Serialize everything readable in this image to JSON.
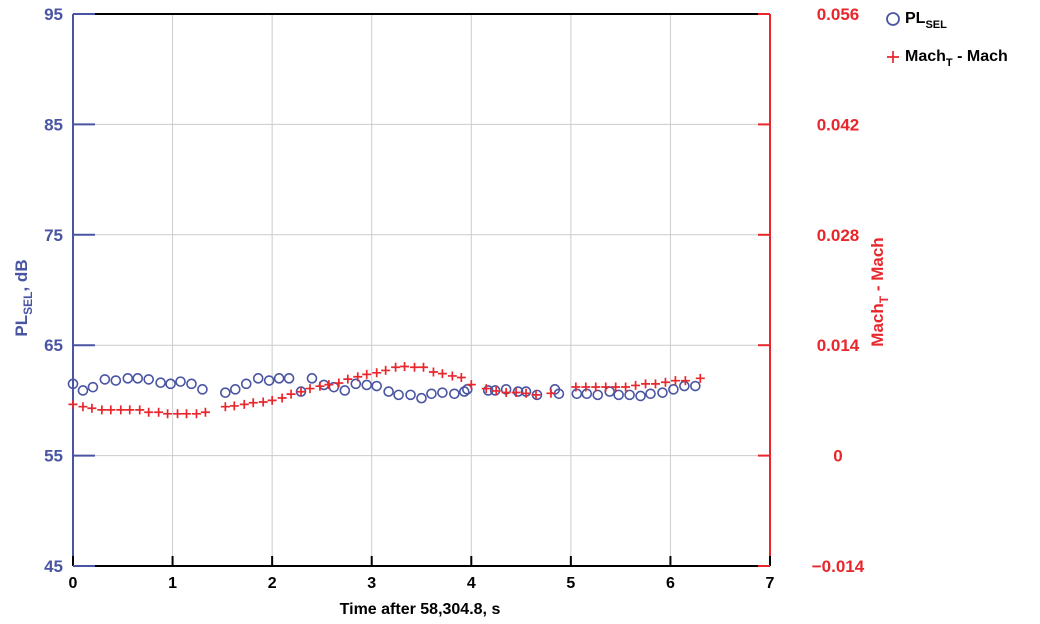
{
  "colors": {
    "left_axis": "#4a55a2",
    "right_axis": "#e8262c",
    "frame": "#000000",
    "grid": "#cccccc",
    "series1": "#4a55a2",
    "series2": "#e8262c"
  },
  "chart_data": {
    "type": "scatter",
    "xlabel": "Time after 58,304.8, s",
    "ylabel_left": {
      "main": "PL",
      "sub": "SEL",
      "rest": ", dB"
    },
    "ylabel_right": {
      "main": "Mach",
      "sub": "T",
      "rest": " - Mach"
    },
    "xlim": [
      0,
      7
    ],
    "ylim_left": [
      45,
      95
    ],
    "ylim_right": [
      -0.014,
      0.056
    ],
    "x_ticks": [
      "0",
      "1",
      "2",
      "3",
      "4",
      "5",
      "6",
      "7"
    ],
    "y_ticks_left": [
      "45",
      "55",
      "65",
      "75",
      "85",
      "95"
    ],
    "y_ticks_right": [
      "−0.014",
      "0",
      "0.014",
      "0.028",
      "0.042",
      "0.056"
    ],
    "grid": true,
    "legend_position": "top-right, outside plot",
    "series": [
      {
        "name": "PL_SEL",
        "legend": {
          "main": "PL",
          "sub": "SEL",
          "rest": ""
        },
        "axis": "left",
        "marker": "circle-open",
        "x": [
          0.0,
          0.1,
          0.2,
          0.32,
          0.43,
          0.55,
          0.65,
          0.76,
          0.88,
          0.98,
          1.08,
          1.19,
          1.3,
          1.53,
          1.63,
          1.74,
          1.86,
          1.97,
          2.07,
          2.17,
          2.29,
          2.4,
          2.52,
          2.62,
          2.73,
          2.84,
          2.95,
          3.05,
          3.17,
          3.27,
          3.39,
          3.5,
          3.6,
          3.71,
          3.83,
          3.93,
          3.96,
          4.17,
          4.24,
          4.35,
          4.47,
          4.55,
          4.66,
          4.84,
          4.88,
          5.06,
          5.16,
          5.27,
          5.39,
          5.48,
          5.59,
          5.7,
          5.8,
          5.92,
          6.03,
          6.14,
          6.25
        ],
        "y": [
          61.5,
          60.9,
          61.2,
          61.9,
          61.8,
          62.0,
          62.0,
          61.9,
          61.6,
          61.5,
          61.7,
          61.5,
          61.0,
          60.7,
          61.0,
          61.5,
          62.0,
          61.8,
          62.0,
          62.0,
          60.8,
          62.0,
          61.4,
          61.2,
          60.9,
          61.5,
          61.4,
          61.3,
          60.8,
          60.5,
          60.5,
          60.2,
          60.6,
          60.7,
          60.6,
          60.8,
          61.0,
          60.9,
          60.9,
          61.0,
          60.8,
          60.8,
          60.5,
          61.0,
          60.6,
          60.6,
          60.6,
          60.5,
          60.8,
          60.5,
          60.5,
          60.4,
          60.6,
          60.7,
          61.0,
          61.3,
          61.3
        ]
      },
      {
        "name": "Mach_T - Mach",
        "legend": {
          "main": "Mach",
          "sub": "T",
          "rest": " - Mach"
        },
        "axis": "right",
        "marker": "plus",
        "x": [
          0.0,
          0.1,
          0.19,
          0.29,
          0.38,
          0.48,
          0.57,
          0.67,
          0.76,
          0.86,
          0.95,
          1.05,
          1.14,
          1.24,
          1.33,
          1.53,
          1.62,
          1.72,
          1.81,
          1.91,
          2.0,
          2.1,
          2.19,
          2.29,
          2.38,
          2.48,
          2.57,
          2.67,
          2.76,
          2.86,
          2.95,
          3.05,
          3.14,
          3.24,
          3.33,
          3.43,
          3.52,
          3.62,
          3.71,
          3.81,
          3.9,
          4.0,
          4.15,
          4.25,
          4.35,
          4.45,
          4.55,
          4.65,
          4.8,
          5.05,
          5.15,
          5.25,
          5.35,
          5.45,
          5.55,
          5.65,
          5.75,
          5.85,
          5.95,
          6.05,
          6.15,
          6.3
        ],
        "y": [
          0.0065,
          0.0062,
          0.006,
          0.0058,
          0.0058,
          0.0058,
          0.0058,
          0.0058,
          0.0055,
          0.0055,
          0.0053,
          0.0053,
          0.0053,
          0.0053,
          0.0055,
          0.0062,
          0.0063,
          0.0065,
          0.0067,
          0.0068,
          0.007,
          0.0073,
          0.0078,
          0.0081,
          0.0085,
          0.0088,
          0.009,
          0.0092,
          0.0097,
          0.01,
          0.0103,
          0.0105,
          0.0108,
          0.0112,
          0.0113,
          0.0112,
          0.0112,
          0.0106,
          0.0104,
          0.0101,
          0.0099,
          0.009,
          0.0085,
          0.0082,
          0.008,
          0.008,
          0.0079,
          0.0077,
          0.0079,
          0.0087,
          0.0087,
          0.0087,
          0.0087,
          0.0087,
          0.0087,
          0.0089,
          0.0091,
          0.0091,
          0.0093,
          0.0095,
          0.0095,
          0.0098
        ]
      }
    ]
  }
}
